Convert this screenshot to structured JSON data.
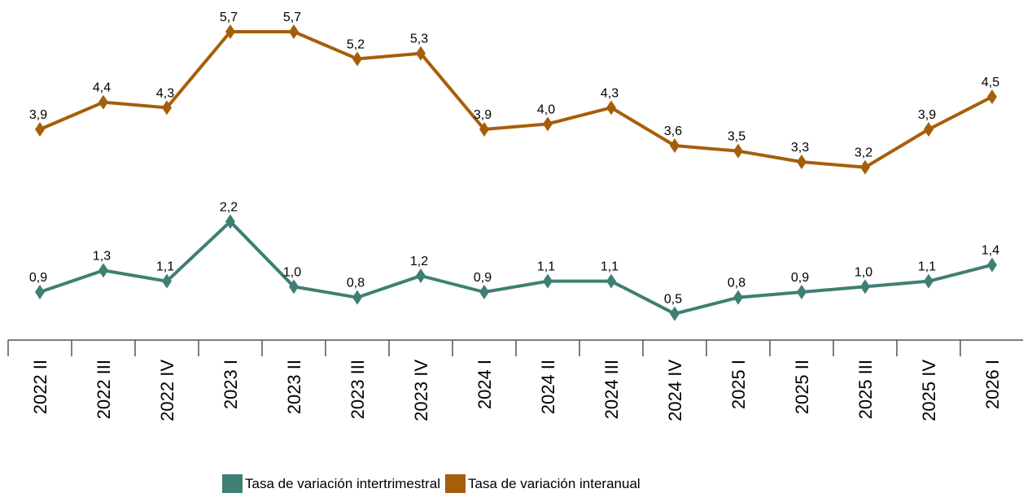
{
  "chart_data": {
    "type": "line",
    "categories": [
      "2022 II",
      "2022 III",
      "2022 IV",
      "2023 I",
      "2023 II",
      "2023 III",
      "2023 IV",
      "2024 I",
      "2024 II",
      "2024 III",
      "2024 IV",
      "2025 I",
      "2025 II",
      "2025 III",
      "2025 IV",
      "2026 I"
    ],
    "series": [
      {
        "name": "Tasa de variación intertrimestral",
        "color": "#3f7f74",
        "values": [
          0.9,
          1.3,
          1.1,
          2.2,
          1.0,
          0.8,
          1.2,
          0.9,
          1.1,
          1.1,
          0.5,
          0.8,
          0.9,
          1.0,
          1.1,
          1.4
        ],
        "value_labels": [
          "0,9",
          "1,3",
          "1,1",
          "2,2",
          "1,0",
          "0,8",
          "1,2",
          "0,9",
          "1,1",
          "1,1",
          "0,5",
          "0,8",
          "0,9",
          "1,0",
          "1,1",
          "1,4"
        ]
      },
      {
        "name": "Tasa de variación interanual",
        "color": "#a65e0a",
        "values": [
          3.9,
          4.4,
          4.3,
          5.7,
          5.7,
          5.2,
          5.3,
          3.9,
          4.0,
          4.3,
          3.6,
          3.5,
          3.3,
          3.2,
          3.9,
          4.5
        ],
        "value_labels": [
          "3,9",
          "4,4",
          "4,3",
          "5,7",
          "5,7",
          "5,2",
          "5,3",
          "3,9",
          "4,0",
          "4,3",
          "3,6",
          "3,5",
          "3,3",
          "3,2",
          "3,9",
          "4,5"
        ]
      }
    ],
    "ylim": [
      0,
      6
    ]
  }
}
